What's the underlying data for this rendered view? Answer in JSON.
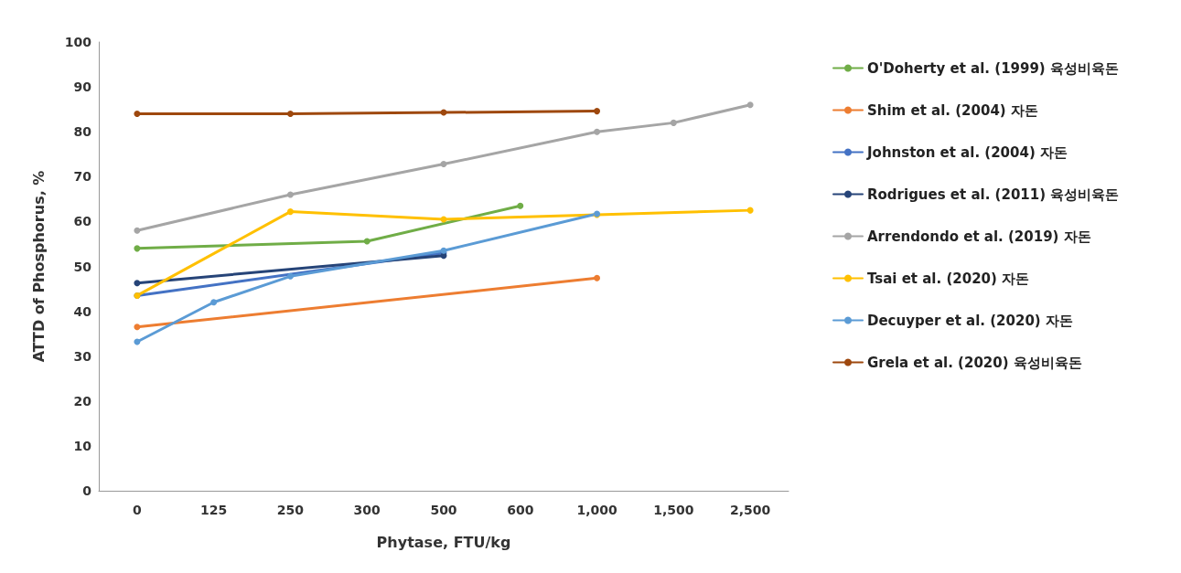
{
  "chart_data": {
    "type": "line",
    "xlabel": "Phytase, FTU/kg",
    "ylabel": "ATTD of Phosphorus, %",
    "categories": [
      "0",
      "125",
      "250",
      "300",
      "500",
      "600",
      "1,000",
      "1,500",
      "2,500"
    ],
    "ylim": [
      0,
      100
    ],
    "yticks": [
      0,
      10,
      20,
      30,
      40,
      50,
      60,
      70,
      80,
      90,
      100
    ],
    "grid": false,
    "legend": "right",
    "marker": "circle",
    "line_style": "solid",
    "series": [
      {
        "name": "O'Doherty et al. (1999) 육성비육돈",
        "color": "#70ad47",
        "values": [
          54,
          null,
          null,
          55.6,
          null,
          63.5,
          null,
          null,
          null
        ]
      },
      {
        "name": "Shim et al. (2004) 자돈",
        "color": "#ed7d31",
        "values": [
          36.5,
          null,
          null,
          null,
          null,
          null,
          47.4,
          null,
          null
        ]
      },
      {
        "name": "Johnston et al. (2004) 자돈",
        "color": "#4472c4",
        "values": [
          43.5,
          null,
          null,
          null,
          53,
          null,
          null,
          null,
          null
        ]
      },
      {
        "name": "Rodrigues et al. (2011) 육성비육돈",
        "color": "#264478",
        "values": [
          46.3,
          null,
          null,
          null,
          52.4,
          null,
          null,
          null,
          null
        ]
      },
      {
        "name": "Arrendondo et al. (2019) 자돈",
        "color": "#a5a5a5",
        "values": [
          58,
          null,
          66,
          null,
          72.8,
          null,
          80,
          82,
          86
        ]
      },
      {
        "name": "Tsai et al. (2020) 자돈",
        "color": "#ffc000",
        "values": [
          43.5,
          null,
          62.2,
          null,
          60.5,
          null,
          61.5,
          null,
          62.5
        ]
      },
      {
        "name": "Decuyper et al. (2020) 자돈",
        "color": "#5b9bd5",
        "values": [
          33.2,
          42,
          47.8,
          null,
          53.5,
          null,
          61.7,
          null,
          null
        ]
      },
      {
        "name": "Grela et al. (2020) 육성비육돈",
        "color": "#9e480e",
        "values": [
          84,
          null,
          84,
          null,
          84.3,
          null,
          84.6,
          null,
          null
        ]
      }
    ]
  }
}
